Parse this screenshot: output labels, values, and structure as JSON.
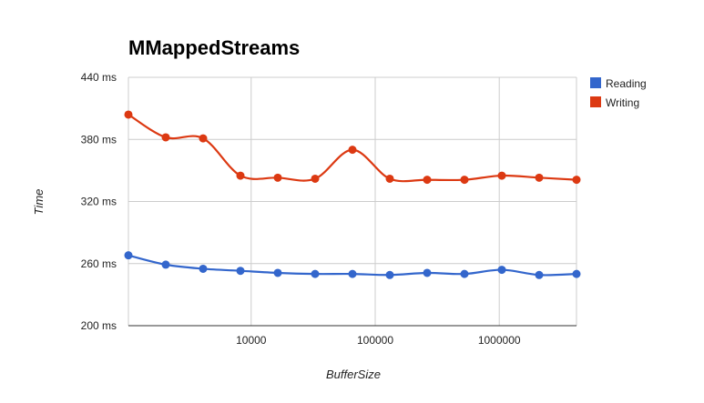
{
  "chart_data": {
    "type": "line",
    "title": "MMappedStreams",
    "xlabel": "BufferSize",
    "ylabel": "Time",
    "x_scale": "log",
    "x": [
      1024,
      2048,
      4096,
      8192,
      16384,
      32768,
      65536,
      131072,
      262144,
      524288,
      1048576,
      2097152,
      4194304
    ],
    "xlim": [
      1024,
      4194304
    ],
    "x_ticks": [
      10000,
      100000,
      1000000
    ],
    "x_tick_labels": [
      "10000",
      "100000",
      "1000000"
    ],
    "ylim": [
      200,
      440
    ],
    "y_ticks": [
      200,
      260,
      320,
      380,
      440
    ],
    "y_tick_labels": [
      "200 ms",
      "260 ms",
      "320 ms",
      "380 ms",
      "440 ms"
    ],
    "grid": true,
    "legend_position": "right",
    "smooth": true,
    "series": [
      {
        "name": "Reading",
        "color": "#3366cc",
        "values": [
          268,
          259,
          255,
          253,
          251,
          250,
          250,
          249,
          251,
          250,
          254,
          249,
          250
        ]
      },
      {
        "name": "Writing",
        "color": "#dc3912",
        "values": [
          404,
          382,
          381,
          345,
          343,
          342,
          370,
          342,
          341,
          341,
          345,
          343,
          341
        ]
      }
    ]
  }
}
